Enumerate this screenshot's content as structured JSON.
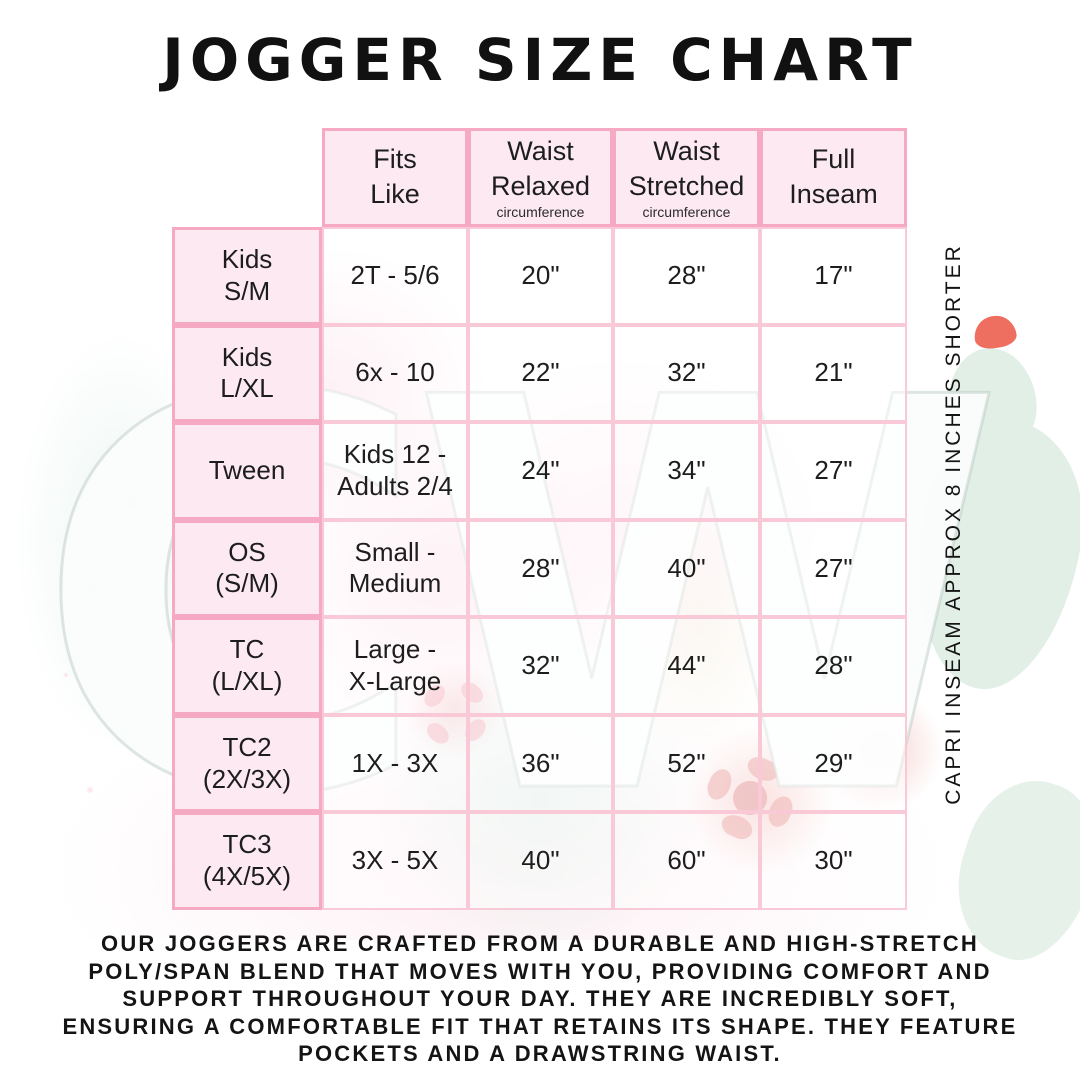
{
  "title": "JOGGER SIZE CHART",
  "watermark_text": "CW",
  "side_note": "CAPRI INSEAM APPROX 8 INCHES SHORTER",
  "table": {
    "headers": [
      {
        "label": "Fits\nLike",
        "sub": ""
      },
      {
        "label": "Waist\nRelaxed",
        "sub": "circumference"
      },
      {
        "label": "Waist\nStretched",
        "sub": "circumference"
      },
      {
        "label": "Full\nInseam",
        "sub": ""
      }
    ],
    "rows": [
      {
        "size": "Kids\nS/M",
        "fits_like": "2T - 5/6",
        "waist_relaxed": "20\"",
        "waist_stretched": "28\"",
        "full_inseam": "17\""
      },
      {
        "size": "Kids\nL/XL",
        "fits_like": "6x - 10",
        "waist_relaxed": "22\"",
        "waist_stretched": "32\"",
        "full_inseam": "21\""
      },
      {
        "size": "Tween",
        "fits_like": "Kids 12 -\nAdults 2/4",
        "waist_relaxed": "24\"",
        "waist_stretched": "34\"",
        "full_inseam": "27\""
      },
      {
        "size": "OS\n(S/M)",
        "fits_like": "Small -\nMedium",
        "waist_relaxed": "28\"",
        "waist_stretched": "40\"",
        "full_inseam": "27\""
      },
      {
        "size": "TC\n(L/XL)",
        "fits_like": "Large -\nX-Large",
        "waist_relaxed": "32\"",
        "waist_stretched": "44\"",
        "full_inseam": "28\""
      },
      {
        "size": "TC2\n(2X/3X)",
        "fits_like": "1X - 3X",
        "waist_relaxed": "36\"",
        "waist_stretched": "52\"",
        "full_inseam": "29\""
      },
      {
        "size": "TC3\n(4X/5X)",
        "fits_like": "3X - 5X",
        "waist_relaxed": "40\"",
        "waist_stretched": "60\"",
        "full_inseam": "30\""
      }
    ]
  },
  "description": {
    "lines": [
      "OUR JOGGERS ARE CRAFTED FROM A DURABLE AND HIGH-STRETCH",
      "POLY/SPAN BLEND THAT MOVES WITH YOU, PROVIDING COMFORT AND",
      "SUPPORT THROUGHOUT YOUR DAY. THEY ARE INCREDIBLY SOFT,",
      "ENSURING A COMFORTABLE FIT THAT RETAINS ITS SHAPE. THEY FEATURE",
      "POCKETS AND A DRAWSTRING WAIST."
    ]
  },
  "colors": {
    "table_border_pink": "#f5a9c3",
    "cell_fill_pink": "#fce9f1",
    "data_cell_border": "#f9c9d8",
    "text": "#1d1d1d",
    "coral_accent": "#ee6f5f",
    "mint_accent": "#e2efe7"
  }
}
